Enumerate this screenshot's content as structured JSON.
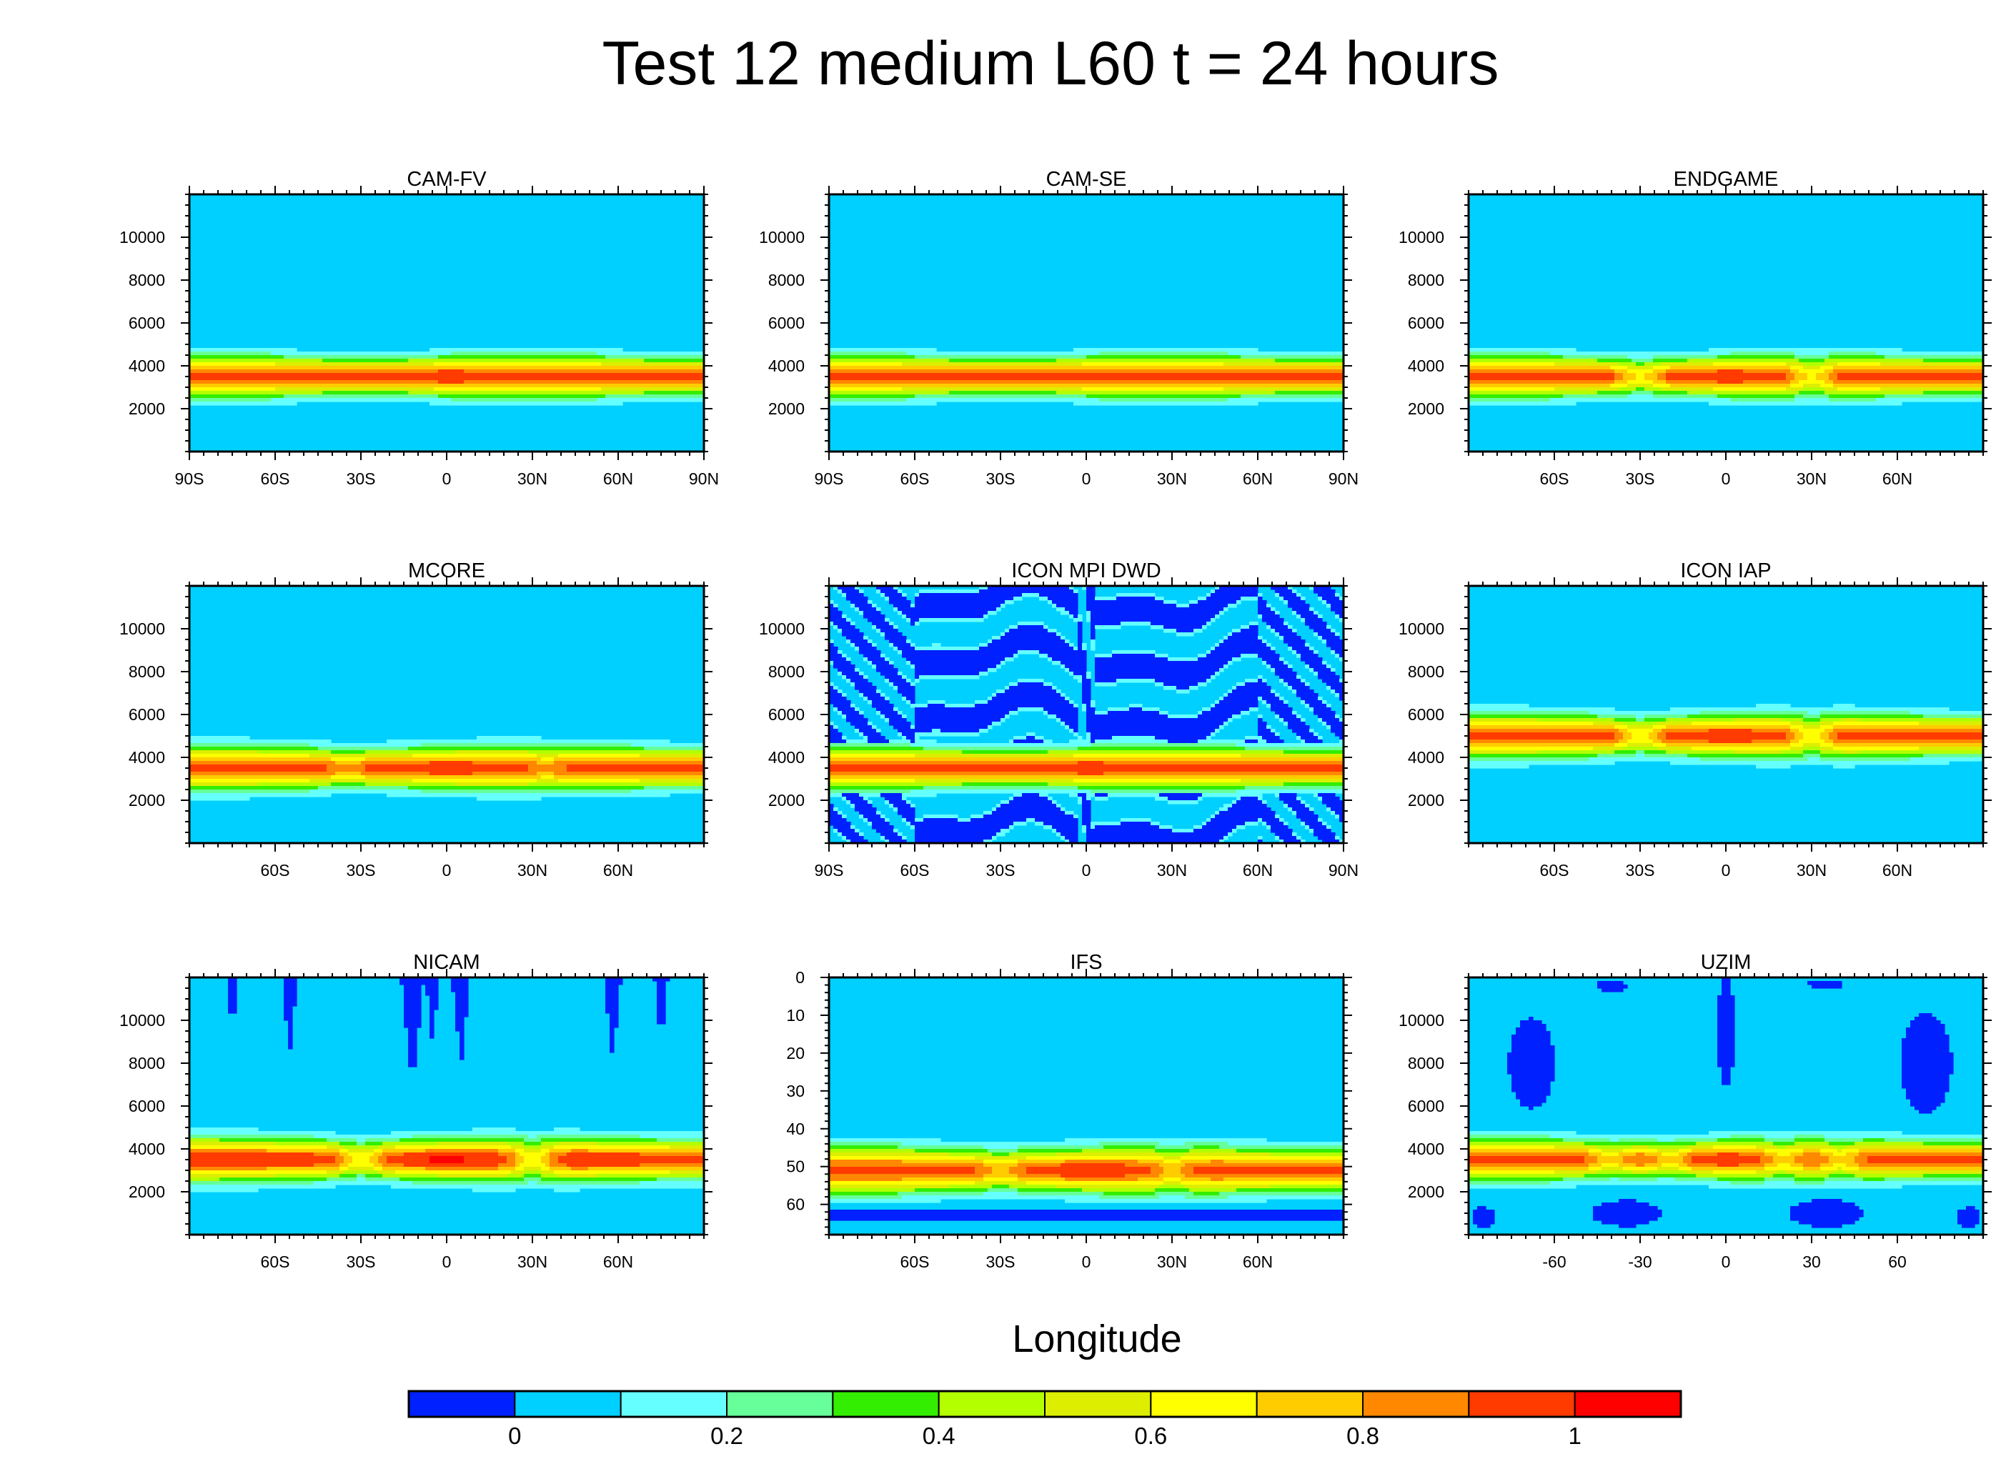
{
  "figure": {
    "title": "Test 12 medium L60 t = 24 hours",
    "xlabel": "Longitude"
  },
  "chart_data": {
    "type": "heatmap",
    "title": "Test 12 medium L60 t = 24 hours",
    "xlabel": "Longitude",
    "colors": [
      "#0020ff",
      "#00d0ff",
      "#66ffff",
      "#66ff99",
      "#33ee00",
      "#b3ff00",
      "#ddee00",
      "#ffff00",
      "#ffcc00",
      "#ff8800",
      "#ff3b00",
      "#ff0000"
    ],
    "colorbar": {
      "levels": [
        -0.1,
        0,
        0.1,
        0.2,
        0.3,
        0.4,
        0.5,
        0.6,
        0.7,
        0.8,
        0.9,
        1.0,
        1.1
      ],
      "tick_values": [
        0,
        0.2,
        0.4,
        0.6,
        0.8,
        1
      ],
      "tick_labels": [
        "0",
        "0.2",
        "0.4",
        "0.6",
        "0.8",
        "1"
      ]
    },
    "panels": [
      {
        "title": "CAM-FV",
        "xticks": [
          -90,
          -60,
          -30,
          0,
          30,
          60,
          90
        ],
        "xtick_labels": [
          "90S",
          "60S",
          "30S",
          "0",
          "30N",
          "60N",
          "90N"
        ],
        "xlim": [
          -90,
          90
        ],
        "ylim": [
          0,
          12000
        ],
        "yticks": [
          2000,
          4000,
          6000,
          8000,
          10000
        ],
        "ytick_labels": [
          "2000",
          "4000",
          "6000",
          "8000",
          "10000"
        ],
        "band_center": 3500,
        "band_peak": 0.95,
        "band_halfwidth": 850,
        "minima_lons": [],
        "min_factor": 1.0,
        "noise": "none"
      },
      {
        "title": "CAM-SE",
        "xticks": [
          -90,
          -60,
          -30,
          0,
          30,
          60,
          90
        ],
        "xtick_labels": [
          "90S",
          "60S",
          "30S",
          "0",
          "30N",
          "60N",
          "90N"
        ],
        "xlim": [
          -90,
          90
        ],
        "ylim": [
          0,
          12000
        ],
        "yticks": [
          2000,
          4000,
          6000,
          8000,
          10000
        ],
        "ytick_labels": [
          "2000",
          "4000",
          "6000",
          "8000",
          "10000"
        ],
        "band_center": 3500,
        "band_peak": 0.93,
        "band_halfwidth": 850,
        "minima_lons": [],
        "min_factor": 1.0,
        "noise": "none"
      },
      {
        "title": "ENDGAME",
        "xticks": [
          -60,
          -30,
          0,
          30,
          60
        ],
        "xtick_labels": [
          "60S",
          "30S",
          "0",
          "30N",
          "60N"
        ],
        "xlim": [
          -90,
          90
        ],
        "ylim": [
          0,
          12000
        ],
        "yticks": [
          2000,
          4000,
          6000,
          8000,
          10000
        ],
        "ytick_labels": [
          "2000",
          "4000",
          "6000",
          "8000",
          "10000"
        ],
        "band_center": 3500,
        "band_peak": 0.95,
        "band_halfwidth": 850,
        "minima_lons": [
          -30,
          30
        ],
        "min_factor": 0.72,
        "noise": "none"
      },
      {
        "title": "MCORE",
        "xticks": [
          -60,
          -30,
          0,
          30,
          60
        ],
        "xtick_labels": [
          "60S",
          "30S",
          "0",
          "30N",
          "60N"
        ],
        "xlim": [
          -90,
          90
        ],
        "ylim": [
          0,
          12000
        ],
        "yticks": [
          2000,
          4000,
          6000,
          8000,
          10000
        ],
        "ytick_labels": [
          "2000",
          "4000",
          "6000",
          "8000",
          "10000"
        ],
        "band_center": 3500,
        "band_peak": 0.95,
        "band_halfwidth": 900,
        "minima_lons": [
          -35,
          35
        ],
        "min_factor": 0.88,
        "noise": "none"
      },
      {
        "title": "ICON MPI DWD",
        "xticks": [
          -90,
          -60,
          -30,
          0,
          30,
          60,
          90
        ],
        "xtick_labels": [
          "90S",
          "60S",
          "30S",
          "0",
          "30N",
          "60N",
          "90N"
        ],
        "xlim": [
          -90,
          90
        ],
        "ylim": [
          0,
          12000
        ],
        "yticks": [
          2000,
          4000,
          6000,
          8000,
          10000
        ],
        "ytick_labels": [
          "2000",
          "4000",
          "6000",
          "8000",
          "10000"
        ],
        "band_center": 3500,
        "band_peak": 0.95,
        "band_halfwidth": 850,
        "minima_lons": [],
        "min_factor": 1.0,
        "noise": "stripes"
      },
      {
        "title": "ICON IAP",
        "xticks": [
          -60,
          -30,
          0,
          30,
          60
        ],
        "xtick_labels": [
          "60S",
          "30S",
          "0",
          "30N",
          "60N"
        ],
        "xlim": [
          -90,
          90
        ],
        "ylim": [
          0,
          12000
        ],
        "yticks": [
          2000,
          4000,
          6000,
          8000,
          10000
        ],
        "ytick_labels": [
          "2000",
          "4000",
          "6000",
          "8000",
          "10000"
        ],
        "band_center": 5000,
        "band_peak": 0.95,
        "band_halfwidth": 900,
        "minima_lons": [
          -30,
          30
        ],
        "min_factor": 0.7,
        "noise": "none"
      },
      {
        "title": "NICAM",
        "xticks": [
          -60,
          -30,
          0,
          30,
          60
        ],
        "xtick_labels": [
          "60S",
          "30S",
          "0",
          "30N",
          "60N"
        ],
        "xlim": [
          -90,
          90
        ],
        "ylim": [
          0,
          12000
        ],
        "yticks": [
          2000,
          4000,
          6000,
          8000,
          10000
        ],
        "ytick_labels": [
          "2000",
          "4000",
          "6000",
          "8000",
          "10000"
        ],
        "band_center": 3500,
        "band_peak": 0.98,
        "band_halfwidth": 900,
        "minima_lons": [
          -30,
          30
        ],
        "min_factor": 0.68,
        "noise": "drips"
      },
      {
        "title": "IFS",
        "xticks": [
          -60,
          -30,
          0,
          30,
          60
        ],
        "xtick_labels": [
          "60S",
          "30S",
          "0",
          "30N",
          "60N"
        ],
        "xlim": [
          -90,
          90
        ],
        "ylim": [
          68,
          0
        ],
        "yticks": [
          0,
          10,
          20,
          30,
          40,
          50,
          60
        ],
        "ytick_labels": [
          "0",
          "10",
          "20",
          "30",
          "40",
          "50",
          "60"
        ],
        "band_center": 51,
        "band_peak": 0.95,
        "band_halfwidth": 5.5,
        "minima_lons": [
          -30,
          30
        ],
        "min_factor": 0.82,
        "noise": "bottomband"
      },
      {
        "title": "UZIM",
        "xticks": [
          -60,
          -30,
          0,
          30,
          60
        ],
        "xtick_labels": [
          "-60",
          "-30",
          "0",
          "30",
          "60"
        ],
        "xlim": [
          -90,
          90
        ],
        "ylim": [
          0,
          12000
        ],
        "yticks": [
          2000,
          4000,
          6000,
          8000,
          10000
        ],
        "ytick_labels": [
          "2000",
          "4000",
          "6000",
          "8000",
          "10000"
        ],
        "band_center": 3500,
        "band_peak": 0.95,
        "band_halfwidth": 850,
        "minima_lons": [
          -40,
          -20,
          20,
          40
        ],
        "min_factor": 0.78,
        "noise": "blobs"
      }
    ]
  }
}
